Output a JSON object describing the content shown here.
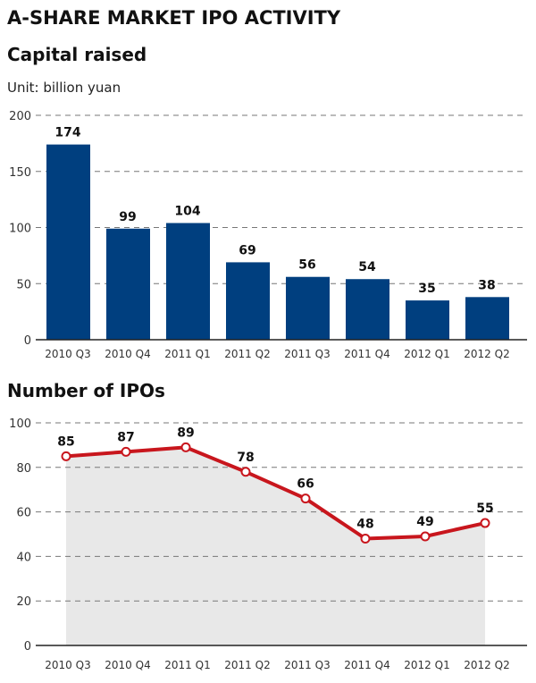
{
  "title": "A-SHARE MARKET IPO ACTIVITY",
  "colors": {
    "bar": "#003f7f",
    "line": "#c8161d",
    "area": "#e8e8e8"
  },
  "chart_data": [
    {
      "type": "bar",
      "title": "Capital raised",
      "unit": "Unit: billion yuan",
      "categories": [
        "2010 Q3",
        "2010 Q4",
        "2011 Q1",
        "2011 Q2",
        "2011 Q3",
        "2011 Q4",
        "2012 Q1",
        "2012 Q2"
      ],
      "values": [
        174,
        99,
        104,
        69,
        56,
        54,
        35,
        38
      ],
      "ylim": [
        0,
        200
      ],
      "yticks": [
        0,
        50,
        100,
        150,
        200
      ],
      "grid": true
    },
    {
      "type": "area",
      "title": "Number of IPOs",
      "categories": [
        "2010 Q3",
        "2010 Q4",
        "2011 Q1",
        "2011 Q2",
        "2011 Q3",
        "2011 Q4",
        "2012 Q1",
        "2012 Q2"
      ],
      "values": [
        85,
        87,
        89,
        78,
        66,
        48,
        49,
        55
      ],
      "ylim": [
        0,
        100
      ],
      "yticks": [
        0,
        20,
        40,
        60,
        80,
        100
      ],
      "grid": true
    }
  ]
}
